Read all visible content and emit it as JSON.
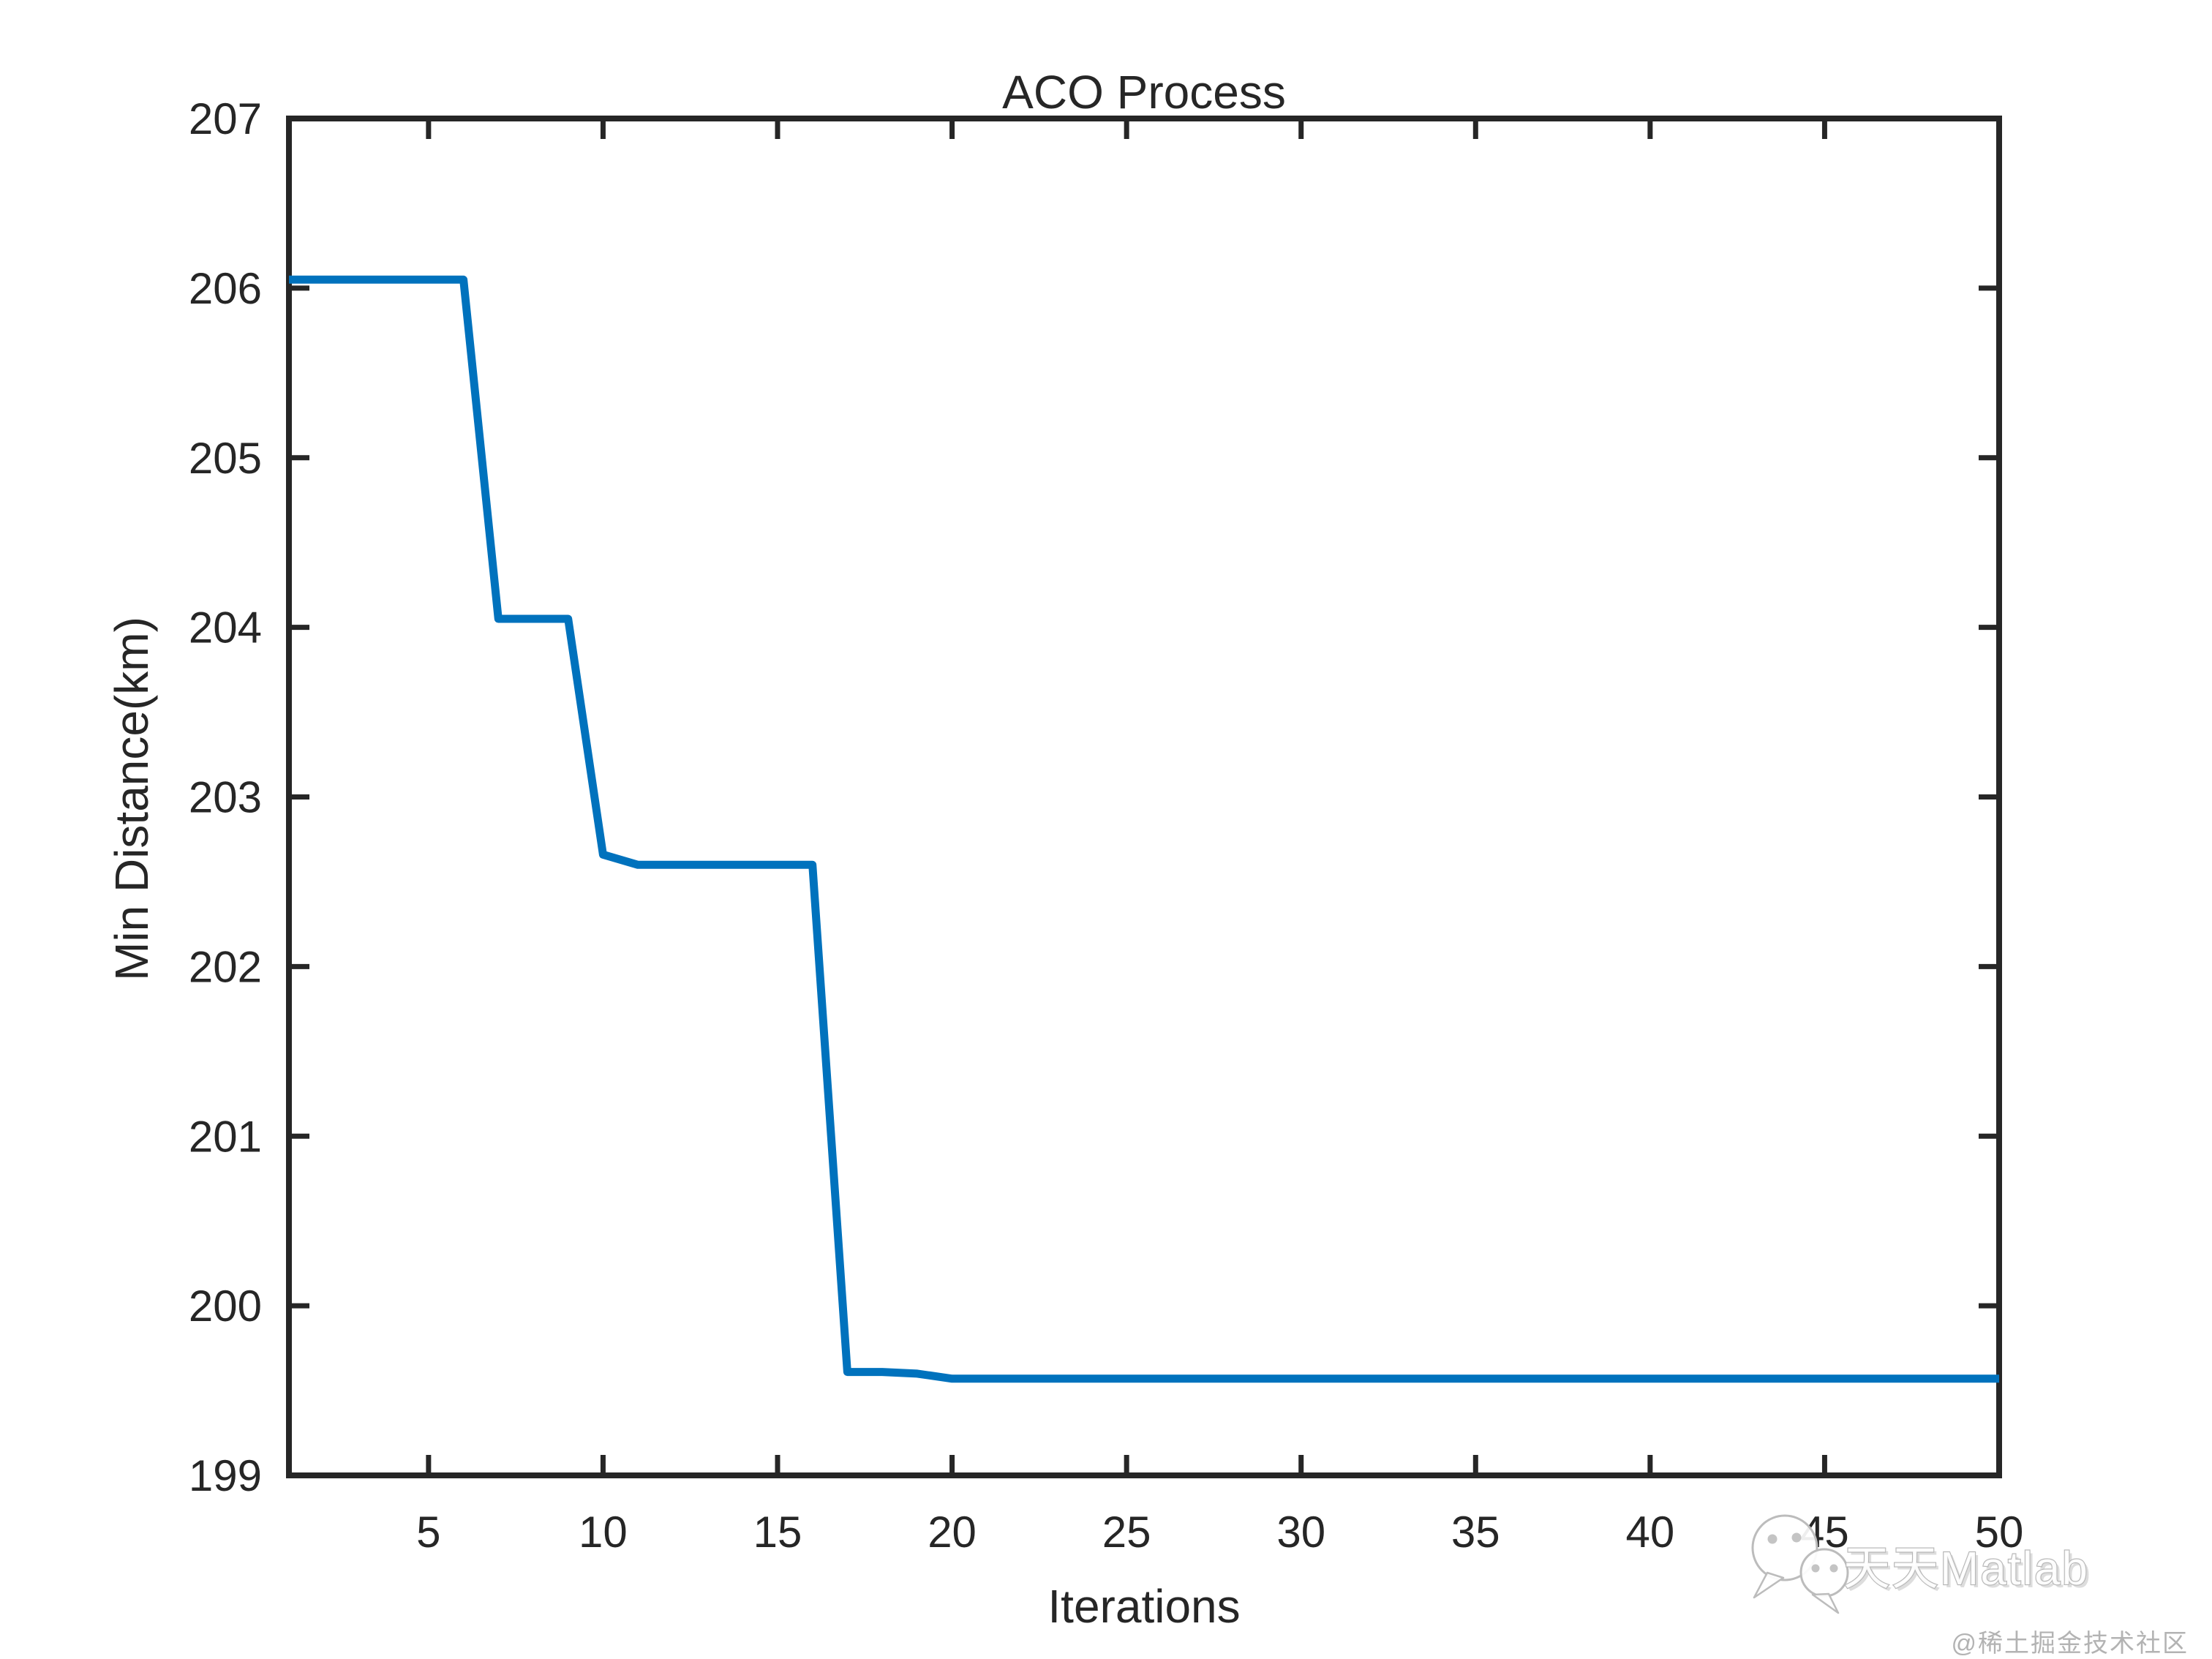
{
  "figure": {
    "background": "#ffffff",
    "watermark": {
      "icon": "wechat-chat-bubbles",
      "text": "天天Matlab"
    },
    "credit": "@稀土掘金技术社区"
  },
  "chart_data": {
    "type": "line",
    "title": "ACO Process",
    "xlabel": "Iterations",
    "ylabel": "Min Distance(km)",
    "xlim": [
      1,
      50
    ],
    "ylim": [
      199,
      207
    ],
    "x_ticks": [
      5,
      10,
      15,
      20,
      25,
      30,
      35,
      40,
      45,
      50
    ],
    "y_ticks": [
      199,
      200,
      201,
      202,
      203,
      204,
      205,
      206,
      207
    ],
    "grid": false,
    "box": true,
    "tick_direction": "in",
    "line_color": "#0072BD",
    "axis_color": "#262626",
    "line_width": 11,
    "series": [
      {
        "name": "Min Distance",
        "x": [
          1,
          2,
          3,
          4,
          5,
          6,
          7,
          8,
          9,
          10,
          11,
          12,
          13,
          14,
          15,
          16,
          17,
          18,
          19,
          20,
          21,
          22,
          23,
          24,
          25,
          26,
          27,
          28,
          29,
          30,
          31,
          32,
          33,
          34,
          35,
          36,
          37,
          38,
          39,
          40,
          41,
          42,
          43,
          44,
          45,
          46,
          47,
          48,
          49,
          50
        ],
        "y": [
          206.05,
          206.05,
          206.05,
          206.05,
          206.05,
          206.05,
          204.05,
          204.05,
          204.05,
          202.66,
          202.6,
          202.6,
          202.6,
          202.6,
          202.6,
          202.6,
          199.61,
          199.61,
          199.6,
          199.57,
          199.57,
          199.57,
          199.57,
          199.57,
          199.57,
          199.57,
          199.57,
          199.57,
          199.57,
          199.57,
          199.57,
          199.57,
          199.57,
          199.57,
          199.57,
          199.57,
          199.57,
          199.57,
          199.57,
          199.57,
          199.57,
          199.57,
          199.57,
          199.57,
          199.57,
          199.57,
          199.57,
          199.57,
          199.57,
          199.57
        ]
      }
    ]
  }
}
